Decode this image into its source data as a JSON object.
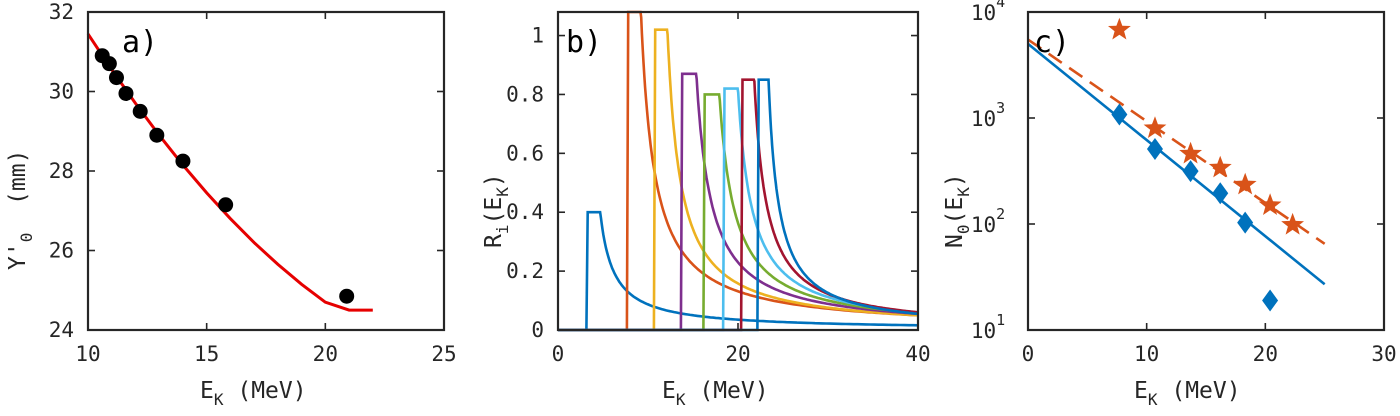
{
  "chart_data": [
    {
      "panel_label": "a)",
      "type": "scatter",
      "xlabel": "E_K (MeV)",
      "ylabel": "Y'_0 (mm)",
      "xlim": [
        10,
        25
      ],
      "ylim": [
        24,
        32
      ],
      "xticks": [
        10,
        15,
        20,
        25
      ],
      "yticks": [
        24,
        26,
        28,
        30,
        32
      ],
      "series": [
        {
          "kind": "points",
          "color": "#000000",
          "x": [
            10.6,
            10.9,
            11.2,
            11.6,
            12.2,
            12.9,
            14.0,
            15.8,
            20.9
          ],
          "y": [
            30.9,
            30.7,
            30.35,
            29.95,
            29.5,
            28.9,
            28.25,
            27.15,
            24.85
          ]
        },
        {
          "kind": "fit-line",
          "color": "#e60000",
          "x": [
            10,
            11,
            12,
            13,
            14,
            15,
            16,
            17,
            18,
            19,
            20,
            21,
            22
          ],
          "y": [
            31.45,
            30.55,
            29.7,
            28.9,
            28.15,
            27.45,
            26.8,
            26.2,
            25.65,
            25.15,
            24.7,
            24.5,
            24.5
          ]
        }
      ]
    },
    {
      "panel_label": "b)",
      "type": "line",
      "xlabel": "E_K (MeV)",
      "ylabel": "R_i(E_K)",
      "xlim": [
        0,
        40
      ],
      "ylim": [
        0,
        1.08
      ],
      "xticks": [
        0,
        20,
        40
      ],
      "yticks": [
        0,
        0.2,
        0.4,
        0.6,
        0.8,
        1
      ],
      "series": [
        {
          "onset": 3.3,
          "peak": 0.4,
          "tail": 0.016,
          "color": "#0072bd"
        },
        {
          "onset": 7.8,
          "peak": 1.08,
          "tail": 0.05,
          "color": "#d95319"
        },
        {
          "onset": 10.8,
          "peak": 1.02,
          "tail": 0.05,
          "color": "#edb120"
        },
        {
          "onset": 13.8,
          "peak": 0.87,
          "tail": 0.055,
          "color": "#7e2f8e"
        },
        {
          "onset": 16.3,
          "peak": 0.8,
          "tail": 0.058,
          "color": "#77ac30"
        },
        {
          "onset": 18.5,
          "peak": 0.82,
          "tail": 0.06,
          "color": "#4dbeee"
        },
        {
          "onset": 20.5,
          "peak": 0.85,
          "tail": 0.06,
          "color": "#a2142f"
        },
        {
          "onset": 22.3,
          "peak": 0.85,
          "tail": 0.055,
          "color": "#0072bd"
        }
      ]
    },
    {
      "panel_label": "c)",
      "type": "scatter",
      "yscale": "log",
      "xlabel": "E_K (MeV)",
      "ylabel": "N_0(E_K)",
      "xlim": [
        0,
        30
      ],
      "ylim": [
        10,
        10000
      ],
      "xticks": [
        0,
        10,
        20,
        30
      ],
      "yticks": [
        10,
        100,
        1000,
        10000
      ],
      "ytick_labels": [
        {
          "base": "10",
          "exp": "1"
        },
        {
          "base": "10",
          "exp": "2"
        },
        {
          "base": "10",
          "exp": "3"
        },
        {
          "base": "10",
          "exp": "4"
        }
      ],
      "series": [
        {
          "kind": "diamonds",
          "color": "#0072bd",
          "x": [
            7.7,
            10.7,
            13.7,
            16.2,
            18.3,
            20.4
          ],
          "y": [
            1080,
            510,
            315,
            195,
            103,
            19
          ]
        },
        {
          "kind": "stars",
          "color": "#d95319",
          "x": [
            7.7,
            10.7,
            13.7,
            16.2,
            18.3,
            20.4,
            22.3
          ],
          "y": [
            6800,
            800,
            460,
            340,
            235,
            150,
            98
          ]
        },
        {
          "kind": "fit-solid",
          "color": "#0072bd",
          "x": [
            0,
            25
          ],
          "y": [
            5000,
            27
          ]
        },
        {
          "kind": "fit-dashed",
          "color": "#d95319",
          "x": [
            0,
            25
          ],
          "y": [
            5500,
            65
          ]
        }
      ]
    }
  ]
}
